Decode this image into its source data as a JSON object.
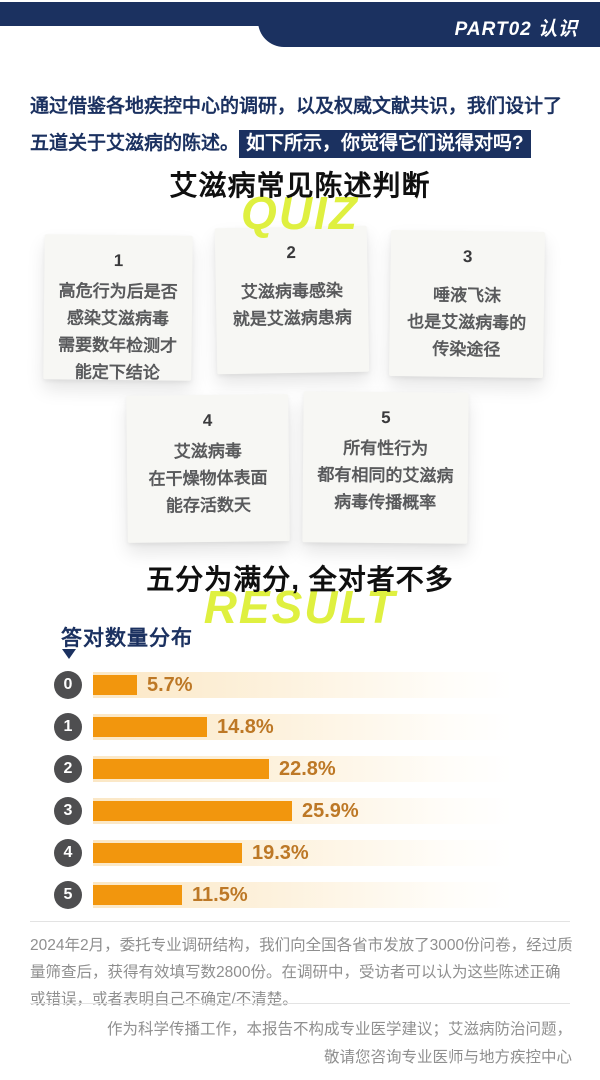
{
  "header": {
    "part_label": "PART02 认识"
  },
  "intro": {
    "line1": "通过借鉴各地疾控中心的调研，以及权威文献共识，我们设计了",
    "line2_prefix": "五道关于艾滋病的陈述。",
    "highlight": "如下所示，你觉得它们说得对吗?"
  },
  "quiz": {
    "title": "艾滋病常见陈述判断",
    "watermark": "QUIZ",
    "notes": [
      {
        "num": "1",
        "text": "高危行为后是否\n感染艾滋病毒\n需要数年检测才\n能定下结论"
      },
      {
        "num": "2",
        "text": "艾滋病毒感染\n就是艾滋病患病"
      },
      {
        "num": "3",
        "text": "唾液飞沫\n也是艾滋病毒的\n传染途径"
      },
      {
        "num": "4",
        "text": "艾滋病毒\n在干燥物体表面\n能存活数天"
      },
      {
        "num": "5",
        "text": "所有性行为\n都有相同的艾滋病\n病毒传播概率"
      }
    ]
  },
  "result": {
    "title": "五分为满分, 全对者不多",
    "watermark": "RESULT"
  },
  "chart_data": {
    "type": "bar",
    "orientation": "horizontal",
    "title": "答对数量分布",
    "categories": [
      "0",
      "1",
      "2",
      "3",
      "4",
      "5"
    ],
    "values": [
      5.7,
      14.8,
      22.8,
      25.9,
      19.3,
      11.5
    ],
    "unit": "%",
    "value_labels": [
      "5.7%",
      "14.8%",
      "22.8%",
      "25.9%",
      "19.3%",
      "11.5%"
    ],
    "xlim": [
      0,
      54.5
    ],
    "grid": false,
    "legend": false,
    "bar_color": "#F2960D",
    "value_label_color": "#BD7826",
    "category_badge_color": "#4E4E50"
  },
  "footer": {
    "methodology": "2024年2月，委托专业调研结构，我们向全国各省市发放了3000份问卷，经过质量筛查后，获得有效填写数2800份。在调研中，受访者可以认为这些陈述正确或错误，或者表明自己不确定/不清楚。",
    "disclaimer": "作为科学传播工作，本报告不构成专业医学建议；艾滋病防治问题，\n敬请您咨询专业医师与地方疾控中心"
  },
  "colors": {
    "navy": "#1B3160",
    "lime": "#DFF040",
    "orange": "#F2960D",
    "note_bg": "#F7F7F4",
    "footer_gray": "#8F8F8F"
  }
}
